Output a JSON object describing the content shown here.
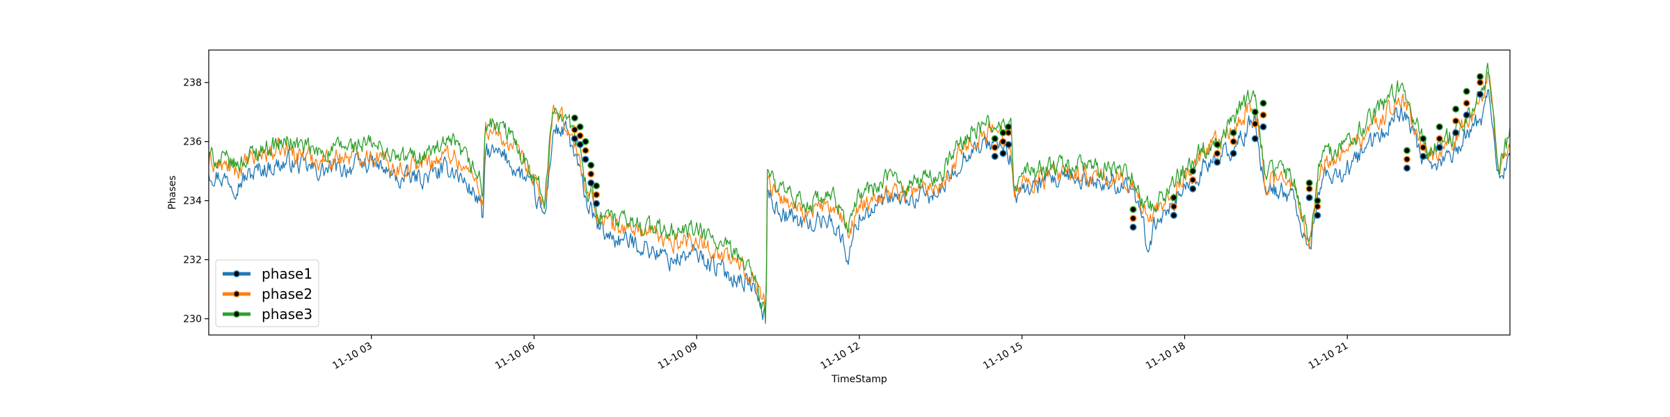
{
  "chart_data": {
    "type": "line",
    "title": "",
    "xlabel": "TimeStamp",
    "ylabel": "Phases",
    "x_unit": "hours since 11-10 00:00",
    "xlim": [
      0.0,
      24.0
    ],
    "ylim": [
      229.45,
      239.1
    ],
    "x_ticks": [
      {
        "value": 3,
        "label": "11-10 03"
      },
      {
        "value": 6,
        "label": "11-10 06"
      },
      {
        "value": 9,
        "label": "11-10 09"
      },
      {
        "value": 12,
        "label": "11-10 12"
      },
      {
        "value": 15,
        "label": "11-10 15"
      },
      {
        "value": 18,
        "label": "11-10 18"
      },
      {
        "value": 21,
        "label": "11-10 21"
      }
    ],
    "y_ticks": [
      230,
      232,
      234,
      236,
      238
    ],
    "grid": false,
    "legend": {
      "position": "lower-left"
    },
    "colors": {
      "phase1": "#1f77b4",
      "phase2": "#ff7f0e",
      "phase3": "#2ca02c",
      "marker": "#000000"
    },
    "series": [
      {
        "name": "phase1",
        "color": "#1f77b4",
        "x": [
          0.0,
          0.5,
          1.0,
          1.5,
          2.0,
          2.5,
          3.0,
          3.5,
          4.0,
          4.5,
          5.0,
          5.06,
          5.1,
          5.5,
          5.9,
          6.2,
          6.35,
          6.6,
          6.8,
          7.0,
          7.2,
          7.5,
          8.0,
          8.5,
          9.0,
          9.5,
          10.0,
          10.28,
          10.3,
          10.5,
          11.0,
          11.5,
          11.8,
          12.0,
          12.5,
          13.0,
          13.5,
          14.0,
          14.5,
          14.8,
          14.85,
          15.0,
          15.5,
          16.0,
          16.5,
          17.0,
          17.3,
          17.6,
          17.9,
          18.2,
          18.5,
          18.8,
          19.1,
          19.3,
          19.5,
          19.6,
          20.0,
          20.2,
          20.3,
          20.5,
          21.0,
          21.5,
          22.0,
          22.5,
          23.0,
          23.5,
          23.6,
          23.8,
          24.0
        ],
        "y": [
          235.0,
          234.6,
          235.1,
          235.3,
          235.0,
          235.1,
          235.3,
          234.7,
          234.8,
          235.1,
          234.0,
          233.1,
          235.7,
          235.4,
          234.6,
          233.4,
          236.4,
          236.3,
          235.2,
          233.8,
          233.0,
          232.7,
          232.5,
          232.0,
          232.2,
          231.6,
          231.2,
          230.0,
          234.4,
          233.7,
          233.2,
          233.4,
          232.1,
          233.5,
          234.0,
          234.0,
          234.3,
          235.7,
          236.0,
          235.5,
          233.9,
          234.4,
          234.6,
          234.7,
          234.6,
          234.6,
          232.6,
          233.6,
          234.2,
          234.8,
          235.3,
          235.6,
          236.2,
          236.9,
          233.9,
          234.4,
          234.2,
          232.7,
          232.2,
          234.6,
          235.1,
          236.0,
          237.1,
          234.9,
          235.7,
          236.9,
          237.9,
          234.6,
          235.6
        ],
        "markers": {
          "x": [
            6.75,
            6.85,
            6.95,
            7.05,
            7.15,
            14.5,
            14.65,
            14.75,
            17.05,
            17.8,
            18.15,
            18.6,
            18.9,
            19.3,
            19.45,
            20.3,
            20.45,
            22.1,
            22.4,
            22.7,
            23.0,
            23.2,
            23.45
          ],
          "y": [
            236.1,
            235.9,
            235.4,
            234.6,
            233.9,
            235.5,
            235.6,
            235.9,
            233.1,
            233.5,
            234.4,
            235.3,
            235.6,
            236.1,
            236.5,
            234.1,
            233.5,
            235.1,
            235.5,
            235.8,
            236.3,
            236.9,
            237.6
          ]
        }
      },
      {
        "name": "phase2",
        "color": "#ff7f0e",
        "x": [
          0.0,
          0.5,
          1.0,
          1.5,
          2.0,
          2.5,
          3.0,
          3.5,
          4.0,
          4.5,
          5.0,
          5.06,
          5.1,
          5.5,
          5.9,
          6.2,
          6.35,
          6.6,
          6.8,
          7.0,
          7.2,
          7.5,
          8.0,
          8.5,
          9.0,
          9.5,
          10.0,
          10.28,
          10.3,
          10.5,
          11.0,
          11.5,
          11.8,
          12.0,
          12.5,
          13.0,
          13.5,
          14.0,
          14.5,
          14.8,
          14.85,
          15.0,
          15.5,
          16.0,
          16.5,
          17.0,
          17.3,
          17.6,
          17.9,
          18.2,
          18.5,
          18.8,
          19.1,
          19.3,
          19.5,
          19.6,
          20.0,
          20.2,
          20.3,
          20.5,
          21.0,
          21.5,
          22.0,
          22.5,
          23.0,
          23.5,
          23.6,
          23.8,
          24.0
        ],
        "y": [
          235.3,
          235.0,
          235.6,
          235.7,
          235.4,
          235.5,
          235.6,
          235.1,
          235.3,
          235.6,
          234.5,
          233.9,
          236.4,
          236.0,
          235.0,
          233.8,
          236.9,
          236.6,
          235.6,
          234.2,
          233.5,
          233.1,
          233.0,
          232.6,
          232.7,
          232.1,
          231.6,
          230.5,
          234.8,
          234.1,
          233.7,
          233.8,
          232.9,
          233.9,
          234.3,
          234.3,
          234.6,
          236.0,
          236.4,
          236.1,
          234.3,
          234.6,
          234.8,
          234.9,
          234.7,
          234.7,
          233.4,
          234.0,
          234.6,
          235.2,
          235.8,
          236.2,
          236.9,
          237.3,
          234.4,
          234.7,
          234.6,
          233.0,
          232.4,
          235.2,
          235.7,
          236.5,
          237.5,
          235.4,
          236.1,
          237.6,
          238.5,
          235.0,
          236.0
        ],
        "markers": {
          "x": [
            6.75,
            6.85,
            6.95,
            7.05,
            7.15,
            14.5,
            14.65,
            14.75,
            17.05,
            17.8,
            18.15,
            18.6,
            18.9,
            19.3,
            19.45,
            20.3,
            20.45,
            22.1,
            22.4,
            22.7,
            23.0,
            23.2,
            23.45
          ],
          "y": [
            236.4,
            236.2,
            235.7,
            234.9,
            234.2,
            235.8,
            236.0,
            236.3,
            233.4,
            233.8,
            234.7,
            235.6,
            236.0,
            236.6,
            236.9,
            234.4,
            233.8,
            235.4,
            235.8,
            236.1,
            236.7,
            237.3,
            238.0
          ]
        }
      },
      {
        "name": "phase3",
        "color": "#2ca02c",
        "x": [
          0.0,
          0.5,
          1.0,
          1.5,
          2.0,
          2.5,
          3.0,
          3.5,
          4.0,
          4.5,
          5.0,
          5.06,
          5.1,
          5.5,
          5.9,
          6.2,
          6.35,
          6.6,
          6.8,
          7.0,
          7.2,
          7.5,
          8.0,
          8.5,
          9.0,
          9.5,
          10.0,
          10.28,
          10.3,
          10.5,
          11.0,
          11.5,
          11.8,
          12.0,
          12.5,
          13.0,
          13.5,
          14.0,
          14.5,
          14.8,
          14.85,
          15.0,
          15.5,
          16.0,
          16.5,
          17.0,
          17.3,
          17.6,
          17.9,
          18.2,
          18.5,
          18.8,
          19.1,
          19.3,
          19.5,
          19.6,
          20.0,
          20.2,
          20.3,
          20.5,
          21.0,
          21.5,
          22.0,
          22.5,
          23.0,
          23.5,
          23.6,
          23.8,
          24.0
        ],
        "y": [
          235.5,
          235.2,
          235.8,
          236.0,
          235.6,
          235.8,
          235.9,
          235.4,
          235.6,
          235.9,
          234.8,
          234.1,
          236.7,
          236.3,
          235.3,
          234.0,
          237.2,
          236.9,
          235.9,
          234.4,
          233.6,
          233.3,
          233.2,
          232.9,
          233.0,
          232.4,
          231.8,
          229.9,
          235.0,
          234.3,
          233.9,
          234.1,
          233.2,
          234.2,
          234.7,
          234.6,
          234.9,
          236.3,
          236.6,
          236.4,
          234.5,
          234.9,
          235.1,
          235.2,
          235.0,
          235.0,
          233.7,
          234.2,
          234.9,
          235.5,
          236.0,
          236.5,
          237.2,
          237.6,
          234.6,
          235.0,
          234.9,
          233.3,
          232.6,
          235.5,
          236.0,
          236.9,
          237.9,
          235.6,
          236.4,
          237.8,
          238.4,
          235.3,
          236.2
        ],
        "markers": {
          "x": [
            6.75,
            6.85,
            6.95,
            7.05,
            7.15,
            14.5,
            14.65,
            14.75,
            17.05,
            17.8,
            18.15,
            18.6,
            18.9,
            19.3,
            19.45,
            20.3,
            20.45,
            22.1,
            22.4,
            22.7,
            23.0,
            23.2,
            23.45
          ],
          "y": [
            236.8,
            236.5,
            236.0,
            235.2,
            234.5,
            236.1,
            236.3,
            236.5,
            233.7,
            234.1,
            235.0,
            235.9,
            236.3,
            237.0,
            237.3,
            234.6,
            234.0,
            235.7,
            236.1,
            236.5,
            237.1,
            237.7,
            238.2
          ]
        }
      }
    ]
  }
}
